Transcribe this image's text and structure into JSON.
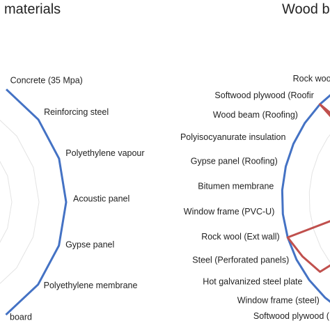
{
  "chart_data": [
    {
      "type": "radar",
      "title": "materials",
      "categories": [
        "Concrete (35 Mpa)",
        "Reinforcing steel",
        "Polyethylene vapour",
        "Acoustic panel",
        "Gypse panel",
        "Polyethylene membrane",
        "board"
      ],
      "rlim": [
        0,
        100
      ],
      "series": [
        {
          "color": "#4472c4",
          "values": [
            100,
            100,
            100,
            100,
            100,
            100,
            100
          ]
        }
      ]
    },
    {
      "type": "radar",
      "title": "Wood b",
      "categories": [
        "Rock wool",
        "Softwood plywood (Roofir",
        "Wood beam (Roofing)",
        "Polyisocyanurate insulation",
        "Gypse panel (Roofing)",
        "Bitumen membrane",
        "Window frame (PVC-U)",
        "Rock wool (Ext wall)",
        "Steel (Perforated panels)",
        "Hot galvanized steel plate",
        "Window frame (steel)",
        "Softwood plywood (Ex"
      ],
      "rlim": [
        0,
        100
      ],
      "series": [
        {
          "color": "#4472c4",
          "values": [
            100,
            100,
            100,
            100,
            100,
            100,
            100,
            100,
            100,
            100,
            100,
            100
          ]
        },
        {
          "color": "#c0504d",
          "values": [
            30,
            100,
            30,
            20,
            20,
            20,
            30,
            100,
            95,
            90,
            30,
            30
          ]
        }
      ]
    }
  ]
}
